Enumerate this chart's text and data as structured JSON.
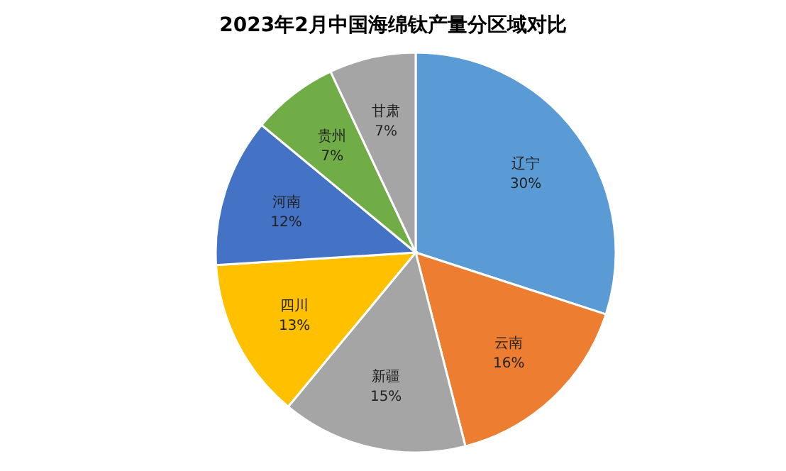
{
  "chart_data": {
    "type": "pie",
    "title": "2023年2月中国海绵钛产量分区域对比",
    "categories": [
      "辽宁",
      "云南",
      "新疆",
      "四川",
      "河南",
      "贵州",
      "甘肃"
    ],
    "values": [
      30,
      16,
      15,
      13,
      12,
      7,
      7
    ],
    "colors": [
      "#5b9bd5",
      "#ed7d31",
      "#a5a5a5",
      "#ffc000",
      "#4472c4",
      "#70ad47",
      "#a5a5a5"
    ],
    "value_labels": [
      "30%",
      "16%",
      "15%",
      "13%",
      "12%",
      "7%",
      "7%"
    ]
  }
}
